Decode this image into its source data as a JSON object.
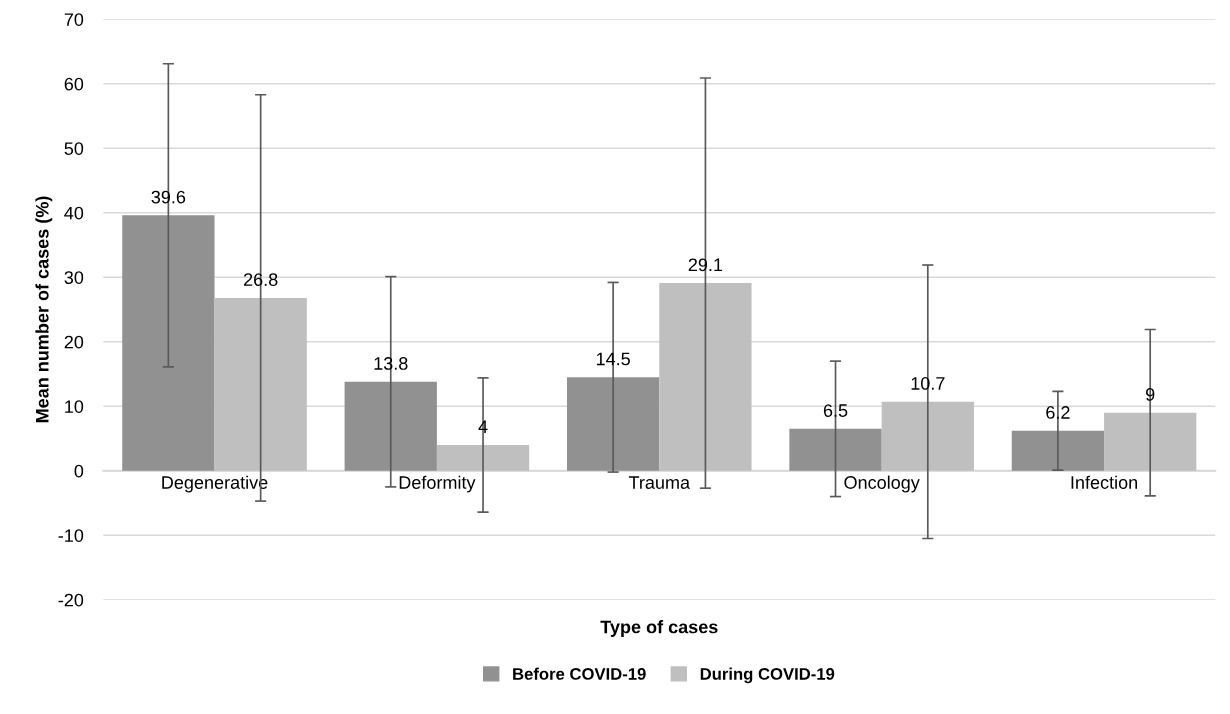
{
  "chart_data": {
    "type": "bar",
    "xlabel": "Type of cases",
    "ylabel": "Mean number of cases (%)",
    "categories": [
      "Degenerative",
      "Deformity",
      "Trauma",
      "Oncology",
      "Infection"
    ],
    "series": [
      {
        "name": "Before COVID-19",
        "color": "#919191",
        "values": [
          39.6,
          13.8,
          14.5,
          6.5,
          6.2
        ],
        "errors": [
          23.5,
          16.3,
          14.7,
          10.5,
          6.1
        ]
      },
      {
        "name": "During COVID-19",
        "color": "#bfbfbf",
        "values": [
          26.8,
          4,
          29.1,
          10.7,
          9
        ],
        "errors": [
          31.5,
          10.4,
          31.8,
          21.2,
          12.9
        ]
      }
    ],
    "ylim": [
      -20,
      70
    ],
    "yticks": [
      -20,
      -10,
      0,
      10,
      20,
      30,
      40,
      50,
      60,
      70
    ],
    "grid": "y",
    "legend": "bottom",
    "data_labels": true
  }
}
